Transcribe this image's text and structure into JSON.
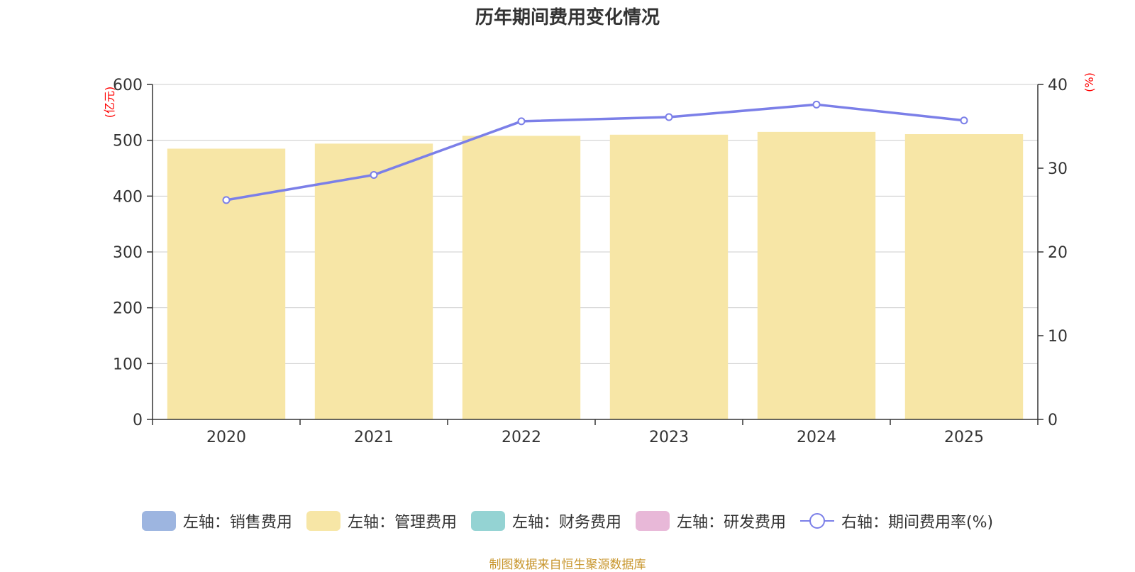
{
  "colors": {
    "sales": "#9db5e0",
    "management": "#f7e6a6",
    "finance": "#94d3d3",
    "rd": "#e8b8d8",
    "rate_line": "#7b7fe8",
    "axis_unit": "#ff0000",
    "grid": "#cccccc",
    "source_text": "#c8962d"
  },
  "legend": {
    "sales": "左轴：销售费用",
    "management": "左轴：管理费用",
    "finance": "左轴：财务费用",
    "rd": "左轴：研发费用",
    "rate": "右轴：期间费用率(%)"
  },
  "source": "制图数据来自恒生聚源数据库",
  "chart_data": {
    "type": "bar",
    "title": "历年期间费用变化情况",
    "categories": [
      "2020",
      "2021",
      "2022",
      "2023",
      "2024",
      "2025"
    ],
    "left_axis": {
      "unit": "(亿元)",
      "min": 0,
      "max": 600,
      "ticks": [
        0,
        100,
        200,
        300,
        400,
        500,
        600
      ]
    },
    "right_axis": {
      "unit": "(%)",
      "min": 0,
      "max": 40,
      "ticks": [
        0,
        10,
        20,
        30,
        40
      ]
    },
    "series": [
      {
        "name": "左轴：管理费用",
        "type": "bar",
        "axis": "left",
        "values": [
          485,
          494,
          508,
          510,
          515,
          511
        ]
      },
      {
        "name": "右轴：期间费用率(%)",
        "type": "line",
        "axis": "right",
        "values": [
          26.2,
          29.2,
          35.6,
          36.1,
          37.6,
          35.7
        ]
      }
    ],
    "grid": true
  }
}
